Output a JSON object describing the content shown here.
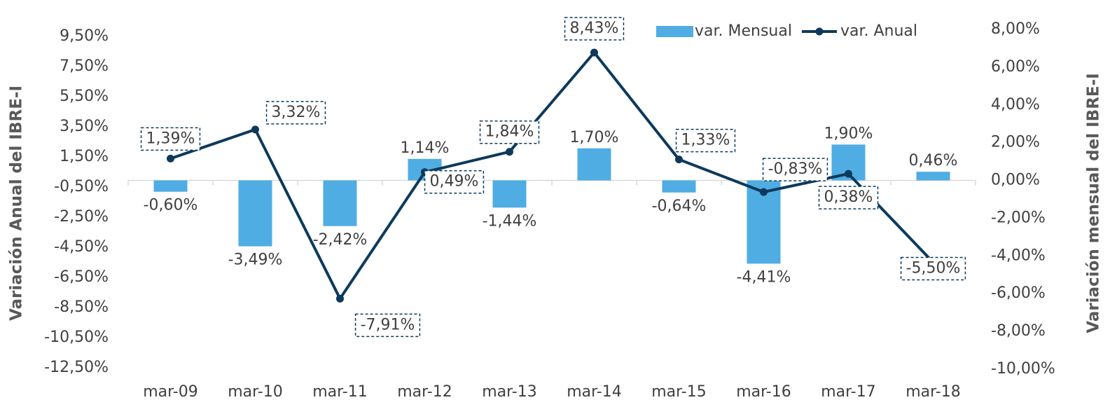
{
  "chart_data": {
    "type": "bar-line",
    "categories": [
      "mar-09",
      "mar-10",
      "mar-11",
      "mar-12",
      "mar-13",
      "mar-14",
      "mar-15",
      "mar-16",
      "mar-17",
      "mar-18"
    ],
    "ylabel": "Variación Anual del IBRE-I",
    "y2label": "Variación mensual del IBRE-I",
    "ylim": [
      -12.5,
      9.5
    ],
    "yticks": [
      {
        "value": 9.5,
        "label": "9,50%"
      },
      {
        "value": 7.5,
        "label": "7,50%"
      },
      {
        "value": 5.5,
        "label": "5,50%"
      },
      {
        "value": 3.5,
        "label": "3,50%"
      },
      {
        "value": 1.5,
        "label": "1,50%"
      },
      {
        "value": -0.5,
        "label": "-0,50%"
      },
      {
        "value": -2.5,
        "label": "-2,50%"
      },
      {
        "value": -4.5,
        "label": "-4,50%"
      },
      {
        "value": -6.5,
        "label": "-6,50%"
      },
      {
        "value": -8.5,
        "label": "-8,50%"
      },
      {
        "value": -10.5,
        "label": "-10,50%"
      },
      {
        "value": -12.5,
        "label": "-12,50%"
      }
    ],
    "y2lim": [
      -10,
      8
    ],
    "y2ticks": [
      {
        "value": 8,
        "label": "8,00%"
      },
      {
        "value": 6,
        "label": "6,00%"
      },
      {
        "value": 4,
        "label": "4,00%"
      },
      {
        "value": 2,
        "label": "2,00%"
      },
      {
        "value": 0,
        "label": "0,00%"
      },
      {
        "value": -2,
        "label": "-2,00%"
      },
      {
        "value": -4,
        "label": "-4,00%"
      },
      {
        "value": -6,
        "label": "-6,00%"
      },
      {
        "value": -8,
        "label": "-8,00%"
      },
      {
        "value": -10,
        "label": "-10,00%"
      }
    ],
    "legend": "top-right",
    "series": [
      {
        "name": "var. Mensual",
        "type": "bar",
        "axis": "y2",
        "color": "#4fade3",
        "values": [
          -0.6,
          -3.49,
          -2.42,
          1.14,
          -1.44,
          1.7,
          -0.64,
          -4.41,
          1.9,
          0.46
        ],
        "value_labels": [
          "-0,60%",
          "-3,49%",
          "-2,42%",
          "1,14%",
          "-1,44%",
          "1,70%",
          "-0,64%",
          "-4,41%",
          "1,90%",
          "0,46%"
        ]
      },
      {
        "name": "var. Anual",
        "type": "line",
        "axis": "y",
        "color": "#0d3a5c",
        "values": [
          1.39,
          3.32,
          -7.91,
          0.49,
          1.84,
          8.43,
          1.33,
          -0.83,
          0.38,
          -5.5
        ],
        "value_labels": [
          "1,39%",
          "3,32%",
          "-7,91%",
          "0,49%",
          "1,84%",
          "8,43%",
          "1,33%",
          "-0,83%",
          "0,38%",
          "-5,50%"
        ]
      }
    ]
  }
}
